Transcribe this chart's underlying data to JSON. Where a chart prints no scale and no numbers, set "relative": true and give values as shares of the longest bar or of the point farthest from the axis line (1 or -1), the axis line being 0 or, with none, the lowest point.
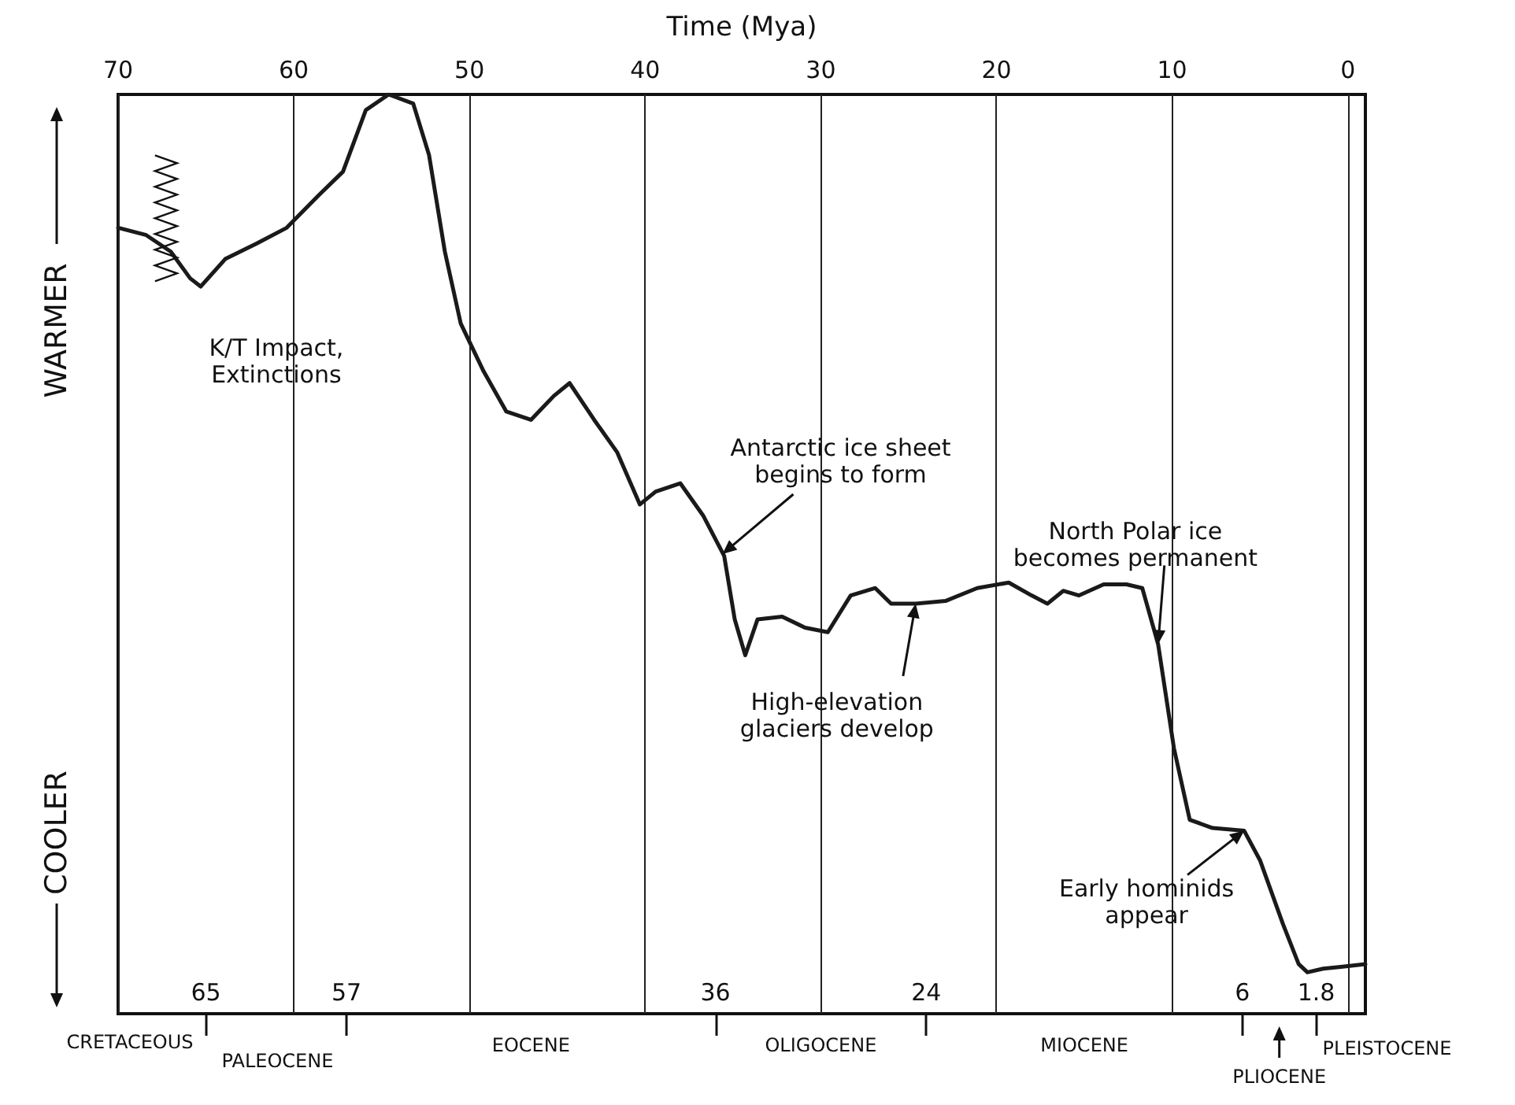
{
  "chart_data": {
    "type": "line",
    "xlabel": "Time (Mya)",
    "relative": true,
    "xlim": [
      70,
      -1
    ],
    "xticks": [
      70,
      60,
      50,
      40,
      30,
      20,
      10,
      0
    ],
    "x2lim": [
      70,
      -1
    ],
    "x2ticks": [
      65,
      57,
      36,
      24,
      6,
      1.8
    ],
    "grid": "x",
    "marker": "none",
    "line_style": "solid",
    "series": [
      {
        "color": "#1a1a1a",
        "x": [
          70,
          68.4,
          67,
          65.9,
          65.3,
          63.9,
          62.1,
          60.4,
          58.6,
          57.2,
          55.9,
          54.6,
          53.2,
          52.3,
          51.4,
          50.5,
          49.2,
          47.9,
          46.5,
          45.2,
          44.3,
          42.9,
          41.6,
          40.3,
          39.4,
          38,
          36.7,
          35.5,
          34.9,
          34.3,
          33.6,
          32.2,
          30.9,
          29.6,
          28.3,
          26.9,
          26,
          24.6,
          22.9,
          21.1,
          19.3,
          18,
          17.1,
          16.2,
          15.3,
          13.9,
          12.6,
          11.7,
          10.8,
          9.9,
          9,
          7.7,
          5.9,
          5,
          3.7,
          2.8,
          2.3,
          1.4,
          0.4,
          -1
        ],
        "values": [
          0.855,
          0.847,
          0.829,
          0.8,
          0.791,
          0.821,
          0.838,
          0.855,
          0.89,
          0.916,
          0.983,
          1,
          0.99,
          0.934,
          0.829,
          0.751,
          0.699,
          0.655,
          0.646,
          0.672,
          0.686,
          0.646,
          0.611,
          0.554,
          0.568,
          0.577,
          0.542,
          0.498,
          0.429,
          0.39,
          0.429,
          0.432,
          0.42,
          0.415,
          0.455,
          0.463,
          0.446,
          0.446,
          0.449,
          0.463,
          0.469,
          0.455,
          0.446,
          0.46,
          0.455,
          0.467,
          0.467,
          0.463,
          0.402,
          0.289,
          0.211,
          0.202,
          0.199,
          0.167,
          0.098,
          0.054,
          0.045,
          0.049,
          0.051,
          0.054
        ]
      }
    ],
    "annotations": [
      {
        "text": "K/T Impact,\nExtinctions",
        "x": 65.3,
        "y": 0.79
      },
      {
        "text": "Antarctic ice sheet\nbegins to form",
        "x": 35.6,
        "y": 0.5
      },
      {
        "text": "High-elevation\nglaciers develop",
        "x": 24.6,
        "y": 0.446
      },
      {
        "text": "North Polar ice\nbecomes permanent",
        "x": 10.8,
        "y": 0.402
      },
      {
        "text": "Early hominids\nappear",
        "x": 5.9,
        "y": 0.199
      },
      "WARMER",
      "COOLER",
      "CRETACEOUS",
      "PALEOCENE",
      "EOCENE",
      "OLIGOCENE",
      "MIOCENE",
      "PLIOCENE",
      "PLEISTOCENE"
    ]
  }
}
